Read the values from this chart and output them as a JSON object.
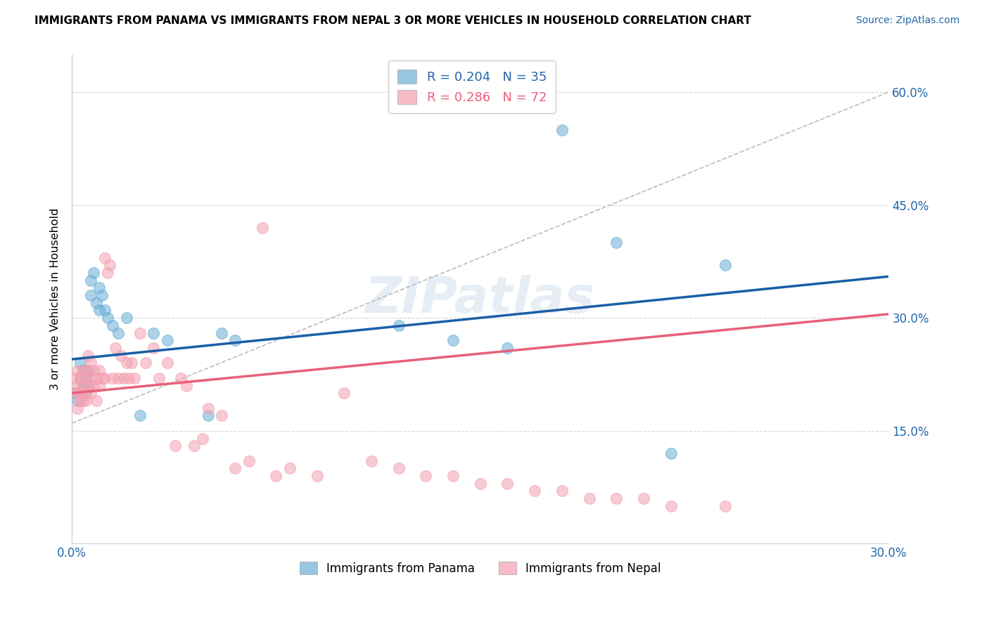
{
  "title": "IMMIGRANTS FROM PANAMA VS IMMIGRANTS FROM NEPAL 3 OR MORE VEHICLES IN HOUSEHOLD CORRELATION CHART",
  "source": "Source: ZipAtlas.com",
  "ylabel": "3 or more Vehicles in Household",
  "xlim": [
    0.0,
    0.3
  ],
  "ylim": [
    0.0,
    0.65
  ],
  "yticks_right": [
    0.15,
    0.3,
    0.45,
    0.6
  ],
  "ytick_labels_right": [
    "15.0%",
    "30.0%",
    "45.0%",
    "60.0%"
  ],
  "xtick_vals": [
    0.0,
    0.05,
    0.1,
    0.15,
    0.2,
    0.25,
    0.3
  ],
  "legend_label1": "Immigrants from Panama",
  "legend_label2": "Immigrants from Nepal",
  "R1": 0.204,
  "N1": 35,
  "R2": 0.286,
  "N2": 72,
  "color1": "#6baed6",
  "color2": "#f4a0b0",
  "watermark": "ZIPatlas",
  "panama_x": [
    0.001,
    0.002,
    0.003,
    0.003,
    0.004,
    0.004,
    0.005,
    0.005,
    0.006,
    0.006,
    0.007,
    0.007,
    0.008,
    0.009,
    0.01,
    0.01,
    0.011,
    0.012,
    0.013,
    0.015,
    0.017,
    0.02,
    0.025,
    0.03,
    0.035,
    0.05,
    0.055,
    0.06,
    0.12,
    0.14,
    0.16,
    0.18,
    0.2,
    0.22,
    0.24
  ],
  "panama_y": [
    0.2,
    0.19,
    0.22,
    0.24,
    0.21,
    0.23,
    0.2,
    0.22,
    0.21,
    0.23,
    0.35,
    0.33,
    0.36,
    0.32,
    0.31,
    0.34,
    0.33,
    0.31,
    0.3,
    0.29,
    0.28,
    0.3,
    0.17,
    0.28,
    0.27,
    0.17,
    0.28,
    0.27,
    0.29,
    0.27,
    0.26,
    0.55,
    0.4,
    0.12,
    0.37
  ],
  "nepal_x": [
    0.001,
    0.001,
    0.002,
    0.002,
    0.002,
    0.003,
    0.003,
    0.003,
    0.004,
    0.004,
    0.004,
    0.005,
    0.005,
    0.005,
    0.006,
    0.006,
    0.006,
    0.007,
    0.007,
    0.007,
    0.008,
    0.008,
    0.009,
    0.009,
    0.01,
    0.01,
    0.011,
    0.012,
    0.012,
    0.013,
    0.014,
    0.015,
    0.016,
    0.017,
    0.018,
    0.019,
    0.02,
    0.021,
    0.022,
    0.023,
    0.025,
    0.027,
    0.03,
    0.032,
    0.035,
    0.038,
    0.04,
    0.042,
    0.045,
    0.048,
    0.05,
    0.055,
    0.06,
    0.065,
    0.07,
    0.075,
    0.08,
    0.09,
    0.1,
    0.11,
    0.12,
    0.13,
    0.14,
    0.15,
    0.16,
    0.17,
    0.18,
    0.19,
    0.2,
    0.21,
    0.22,
    0.24
  ],
  "nepal_y": [
    0.2,
    0.22,
    0.18,
    0.21,
    0.23,
    0.19,
    0.22,
    0.2,
    0.21,
    0.19,
    0.23,
    0.2,
    0.22,
    0.19,
    0.21,
    0.25,
    0.23,
    0.22,
    0.2,
    0.24,
    0.21,
    0.23,
    0.22,
    0.19,
    0.21,
    0.23,
    0.22,
    0.38,
    0.22,
    0.36,
    0.37,
    0.22,
    0.26,
    0.22,
    0.25,
    0.22,
    0.24,
    0.22,
    0.24,
    0.22,
    0.28,
    0.24,
    0.26,
    0.22,
    0.24,
    0.13,
    0.22,
    0.21,
    0.13,
    0.14,
    0.18,
    0.17,
    0.1,
    0.11,
    0.42,
    0.09,
    0.1,
    0.09,
    0.2,
    0.11,
    0.1,
    0.09,
    0.09,
    0.08,
    0.08,
    0.07,
    0.07,
    0.06,
    0.06,
    0.06,
    0.05,
    0.05
  ]
}
